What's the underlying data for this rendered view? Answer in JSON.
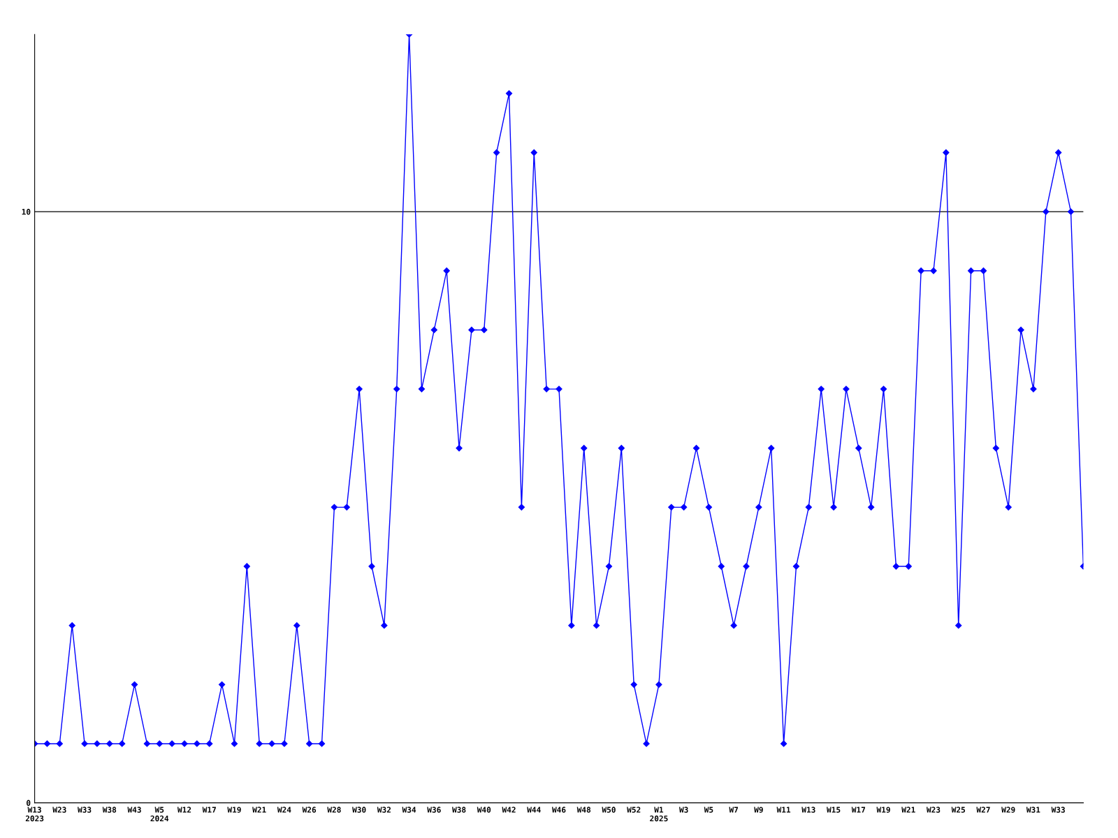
{
  "chart_data": {
    "type": "line",
    "categories": [
      "W13\n2023",
      null,
      "W23",
      null,
      "W33",
      null,
      "W38",
      null,
      "W43",
      null,
      "W5\n2024",
      null,
      "W12",
      null,
      "W17",
      null,
      "W19",
      null,
      "W21",
      null,
      "W24",
      null,
      "W26",
      null,
      "W28",
      null,
      "W30",
      null,
      "W32",
      null,
      "W34",
      null,
      "W36",
      null,
      "W38",
      null,
      "W40",
      null,
      "W42",
      null,
      "W44",
      null,
      "W46",
      null,
      "W48",
      null,
      "W50",
      null,
      "W52",
      null,
      "W1\n2025",
      null,
      "W3",
      null,
      "W5",
      null,
      "W7",
      null,
      "W9",
      null,
      "W11",
      null,
      "W13",
      null,
      "W15",
      null,
      "W17",
      null,
      "W19",
      null,
      "W21",
      null,
      "W23",
      null,
      "W25",
      null,
      "W27",
      null,
      "W29",
      null,
      "W31",
      null,
      "W33",
      null,
      null
    ],
    "series": [
      {
        "color": "#0000ff",
        "values": [
          1,
          1,
          1,
          3,
          1,
          1,
          1,
          1,
          2,
          1,
          1,
          1,
          1,
          1,
          1,
          2,
          1,
          4,
          1,
          1,
          1,
          3,
          1,
          1,
          5,
          5,
          7,
          4,
          3,
          7,
          13,
          7,
          8,
          9,
          6,
          8,
          8,
          11,
          12,
          5,
          11,
          7,
          7,
          3,
          6,
          3,
          4,
          6,
          2,
          1,
          2,
          5,
          5,
          6,
          5,
          4,
          3,
          4,
          5,
          6,
          1,
          4,
          5,
          7,
          5,
          7,
          6,
          5,
          7,
          4,
          4,
          9,
          9,
          11,
          3,
          9,
          9,
          6,
          5,
          8,
          7,
          10,
          11,
          10,
          4
        ]
      }
    ],
    "ylim": [
      0,
      13
    ],
    "yticks": [
      0,
      10
    ],
    "grid": "y",
    "marker": "diamond",
    "line_style": "solid",
    "legend": false
  }
}
